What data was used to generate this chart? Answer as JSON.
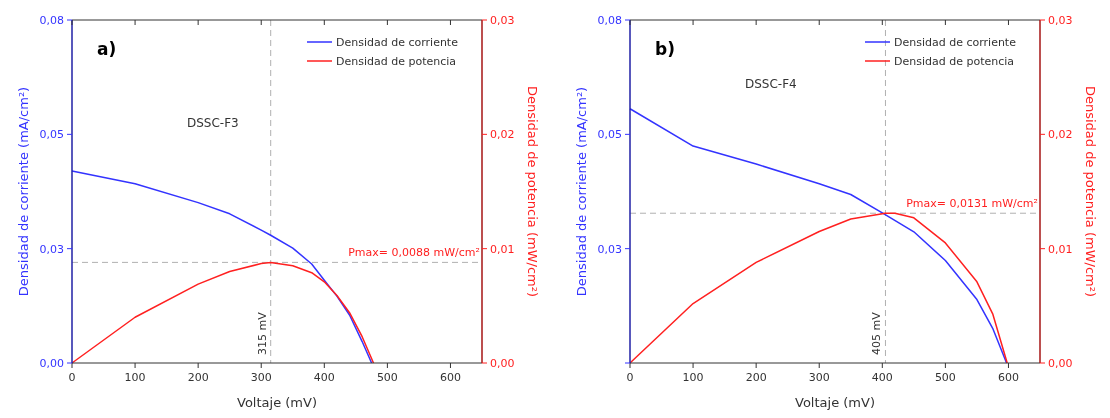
{
  "chart_data": [
    {
      "type": "line",
      "annotations": [
        "a)",
        "DSSC-F3"
      ],
      "xlabel": "Voltaje (mV)",
      "ylabel": "Densidad de corriente (mA/cm²)",
      "y2label": "Densidad de potencia (mW/cm²)",
      "xlim": [
        0,
        650
      ],
      "xticks": [
        0,
        100,
        200,
        300,
        400,
        500,
        600
      ],
      "ylim": [
        0,
        0.08
      ],
      "yticks": [
        {
          "value": 0,
          "label": "0,00"
        },
        {
          "value": 0.02667,
          "label": "0,03"
        },
        {
          "value": 0.05333,
          "label": "0,05"
        },
        {
          "value": 0.08,
          "label": "0,08"
        }
      ],
      "y2lim": [
        0,
        0.03
      ],
      "y2ticks": [
        {
          "value": 0,
          "label": "0,00"
        },
        {
          "value": 0.01,
          "label": "0,01"
        },
        {
          "value": 0.02,
          "label": "0,02"
        },
        {
          "value": 0.03,
          "label": "0,03"
        }
      ],
      "legend": "top right",
      "line_style": "solid",
      "series": [
        {
          "name": "Densidad de corriente",
          "color": "#3333ff",
          "x": [
            0,
            100,
            200,
            250,
            300,
            315,
            350,
            380,
            400,
            420,
            440,
            460,
            475
          ],
          "values": [
            0.0448,
            0.0418,
            0.0374,
            0.0348,
            0.031,
            0.0298,
            0.0268,
            0.0231,
            0.0193,
            0.0156,
            0.0112,
            0.005,
            0
          ]
        },
        {
          "name": "Densidad de potencia",
          "color": "#ff2020",
          "axis": "y2",
          "x": [
            0,
            100,
            200,
            250,
            300,
            315,
            350,
            380,
            400,
            420,
            440,
            460,
            478
          ],
          "values": [
            0,
            0.004,
            0.0069,
            0.008,
            0.0087,
            0.0088,
            0.0085,
            0.0079,
            0.0071,
            0.0059,
            0.0044,
            0.0023,
            0
          ]
        }
      ],
      "ref_lines": [
        {
          "axis": "x",
          "value": 315,
          "label": "315 mV",
          "color": "#b0b0b0",
          "line_style": "dashed"
        },
        {
          "axis": "y2",
          "value": 0.0088,
          "label": "Pmax= 0,0088 mW/cm²",
          "color": "#b0b0b0",
          "line_style": "dashed"
        }
      ]
    },
    {
      "type": "line",
      "annotations": [
        "b)",
        "DSSC-F4"
      ],
      "xlabel": "Voltaje (mV)",
      "ylabel": "Densidad de corriente (mA/cm²)",
      "y2label": "Densidad de potencia (mW/cm²)",
      "xlim": [
        0,
        650
      ],
      "xticks": [
        0,
        100,
        200,
        300,
        400,
        500,
        600
      ],
      "ylim": [
        0,
        0.08
      ],
      "yticks": [
        {
          "value": 0,
          "label": null
        },
        {
          "value": 0.02667,
          "label": "0,03"
        },
        {
          "value": 0.05333,
          "label": "0,05"
        },
        {
          "value": 0.08,
          "label": "0,08"
        }
      ],
      "y2lim": [
        0,
        0.03
      ],
      "y2ticks": [
        {
          "value": 0,
          "label": "0,00"
        },
        {
          "value": 0.01,
          "label": "0,01"
        },
        {
          "value": 0.02,
          "label": "0,02"
        },
        {
          "value": 0.03,
          "label": "0,03"
        }
      ],
      "legend": "top right",
      "line_style": "solid",
      "series": [
        {
          "name": "Densidad de corriente",
          "color": "#3333ff",
          "x": [
            0,
            100,
            200,
            300,
            350,
            400,
            450,
            500,
            550,
            575,
            597
          ],
          "values": [
            0.0593,
            0.0506,
            0.0464,
            0.0418,
            0.0393,
            0.035,
            0.0306,
            0.0239,
            0.0148,
            0.0081,
            0
          ]
        },
        {
          "name": "Densidad de potencia",
          "color": "#ff2020",
          "axis": "y2",
          "x": [
            0,
            100,
            200,
            300,
            350,
            405,
            420,
            450,
            500,
            550,
            575,
            598
          ],
          "values": [
            0,
            0.0052,
            0.0088,
            0.0115,
            0.0126,
            0.0131,
            0.0131,
            0.0127,
            0.0105,
            0.0071,
            0.0043,
            0
          ]
        }
      ],
      "ref_lines": [
        {
          "axis": "x",
          "value": 405,
          "label": "405 mV",
          "color": "#b0b0b0",
          "line_style": "dashed"
        },
        {
          "axis": "y2",
          "value": 0.0131,
          "label": "Pmax= 0,0131 mW/cm²",
          "color": "#b0b0b0",
          "line_style": "dashed"
        }
      ]
    }
  ]
}
